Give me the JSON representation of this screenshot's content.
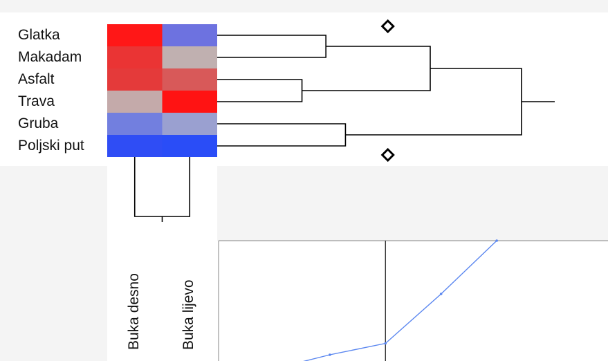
{
  "chart_data": {
    "type": "heatmap",
    "title": "",
    "rows": [
      "Glatka",
      "Makadam",
      "Asfalt",
      "Trava",
      "Gruba",
      "Poljski put"
    ],
    "columns": [
      "Buka desno",
      "Buka lijevo"
    ],
    "cell_colors": [
      [
        "#ff1717",
        "#6d72e0"
      ],
      [
        "#ea3434",
        "#c0b0b0"
      ],
      [
        "#e43a3a",
        "#d85959"
      ],
      [
        "#c4aaaa",
        "#ff1313"
      ],
      [
        "#727fdf",
        "#9aa0d0"
      ],
      [
        "#2f4df5",
        "#2a4df7"
      ]
    ],
    "row_dendrogram": {
      "leaf_order": [
        "Glatka",
        "Makadam",
        "Asfalt",
        "Trava",
        "Gruba",
        "Poljski put"
      ],
      "merges": [
        {
          "a": "Glatka",
          "b": "Makadam",
          "height": 0.5
        },
        {
          "a": "Asfalt",
          "b": "Trava",
          "height": 0.39
        },
        {
          "a": "Gruba",
          "b": "Poljski put",
          "height": 0.59
        },
        {
          "a": "Glatka+Makadam",
          "b": "Asfalt+Trava",
          "height": 0.98
        },
        {
          "a": "Glatka+Makadam+Asfalt+Trava",
          "b": "Gruba+Poljski put",
          "height": 1.4
        }
      ],
      "cut_markers": 2
    },
    "column_dendrogram": {
      "leaf_order": [
        "Buka desno",
        "Buka lijevo"
      ],
      "merge_height": 1
    },
    "distance_plot": {
      "type": "line",
      "x": [
        1,
        2,
        3,
        4,
        5
      ],
      "y": [
        0.39,
        0.5,
        0.59,
        0.98,
        1.4
      ],
      "cut_after_index": 2,
      "line_color": "#5b87f0"
    }
  }
}
